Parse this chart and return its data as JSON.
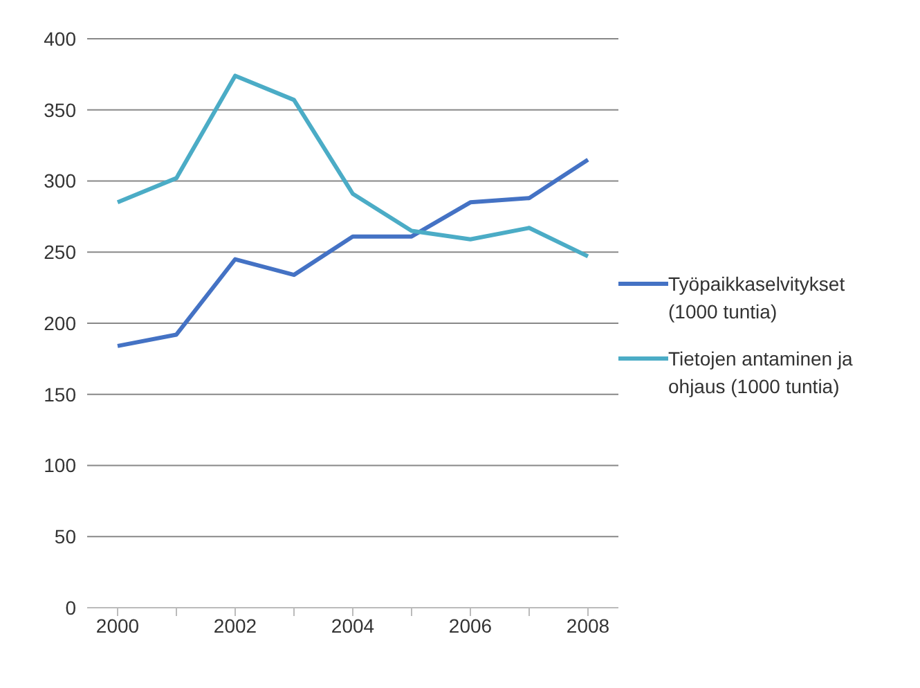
{
  "chart_data": {
    "type": "line",
    "categories": [
      "2000",
      null,
      "2002",
      null,
      "2004",
      null,
      "2006",
      null,
      "2008"
    ],
    "series": [
      {
        "name": "Työpaikkaselvitykset (1000 tuntia)",
        "color": "#4472c4",
        "values": [
          184,
          192,
          245,
          234,
          261,
          261,
          285,
          288,
          315
        ]
      },
      {
        "name": "Tietojen antaminen ja ohjaus (1000 tuntia)",
        "color": "#4bacc6",
        "values": [
          285,
          302,
          374,
          357,
          291,
          265,
          259,
          267,
          247
        ]
      }
    ],
    "ylim": [
      0,
      400
    ],
    "yticks": [
      0,
      50,
      100,
      150,
      200,
      250,
      300,
      350,
      400
    ],
    "grid": "y",
    "legend": "right",
    "marker": "none",
    "line_style": "solid"
  }
}
